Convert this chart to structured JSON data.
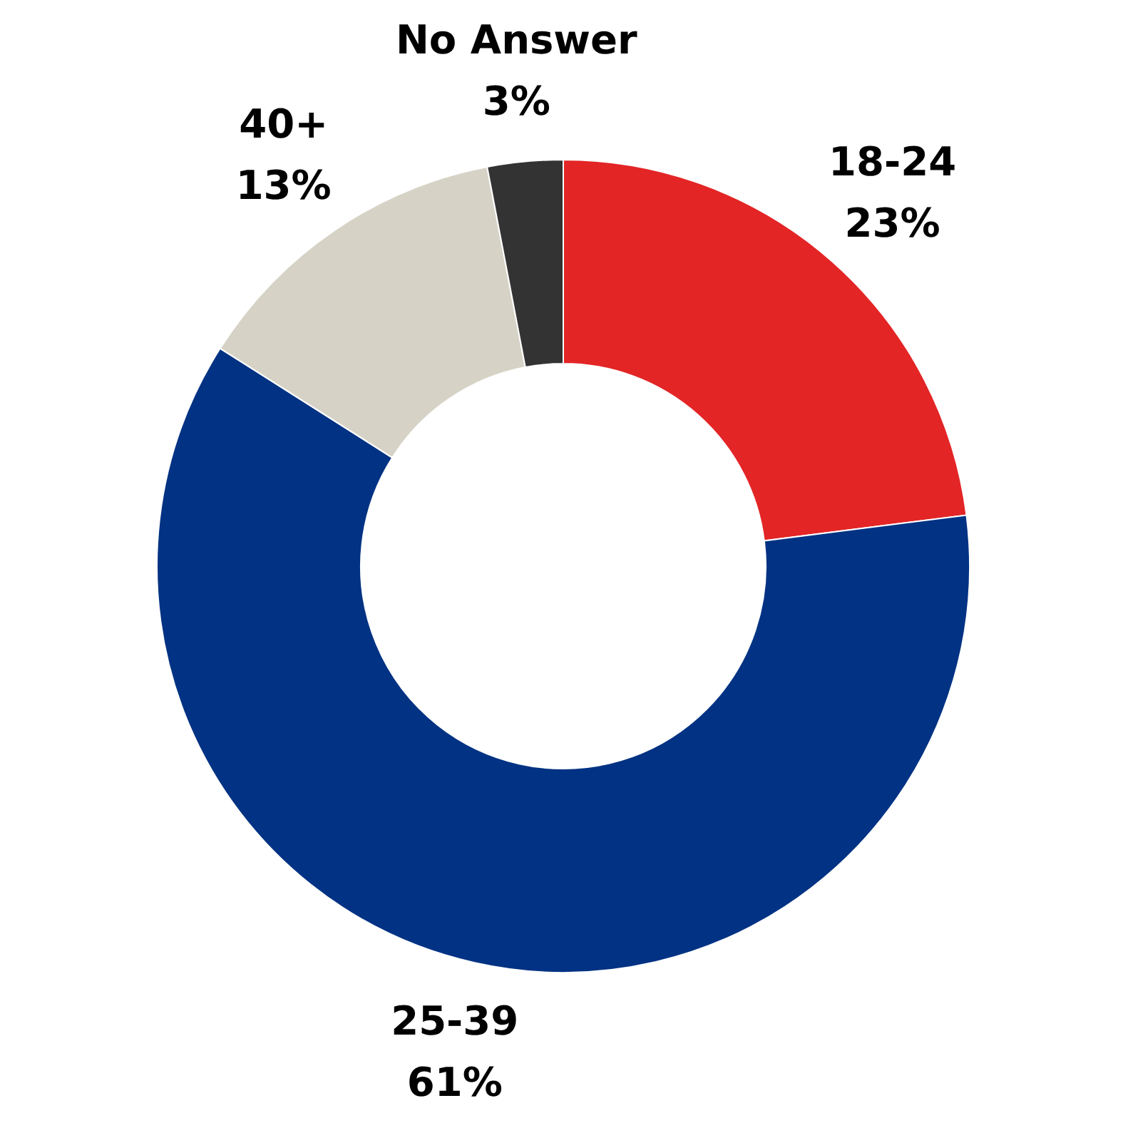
{
  "chart_data": {
    "type": "donut",
    "categories": [
      "18-24",
      "25-39",
      "40+",
      "No Answer"
    ],
    "values": [
      23,
      61,
      13,
      3
    ],
    "value_labels": [
      "23%",
      "61%",
      "13%",
      "3%"
    ],
    "colors": [
      "#e32526",
      "#013283",
      "#d6d3c6",
      "#333333"
    ]
  }
}
